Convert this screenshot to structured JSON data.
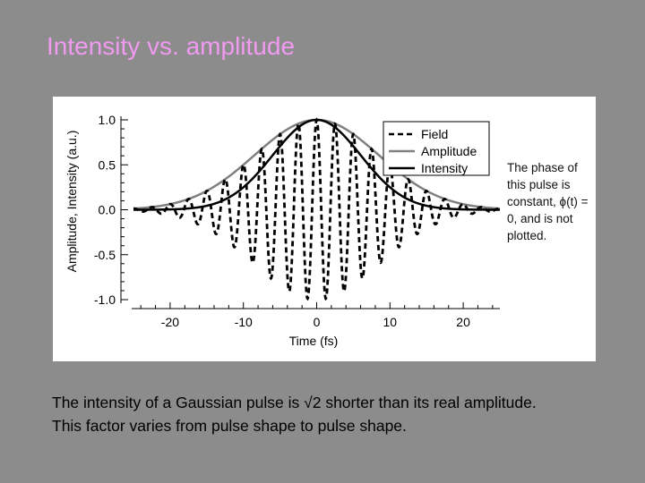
{
  "slide": {
    "title": "Intensity vs. amplitude",
    "side_note": "The phase of this pulse is constant, ϕ(t) = 0, and is not plotted.",
    "caption_line1": "The intensity of a Gaussian pulse is √2 shorter than its real amplitude.",
    "caption_line2": "This factor varies from pulse shape to pulse shape."
  },
  "chart_data": {
    "type": "line",
    "xlabel": "Time (fs)",
    "ylabel": "Amplitude, Intensity (a.u.)",
    "xlim": [
      -25,
      25
    ],
    "ylim": [
      -1.0,
      1.0
    ],
    "xticks": [
      -20,
      -10,
      0,
      10,
      20
    ],
    "yticks": [
      1.0,
      0.5,
      0.0,
      -0.5,
      -1.0
    ],
    "ytick_labels": [
      "1.0",
      "0.5",
      "0.0",
      "-0.5",
      "-1.0"
    ],
    "grid": false,
    "legend_position": "top-right",
    "pulse_fwhm_amplitude_fs": 20,
    "carrier_period_fs": 2.5,
    "series": [
      {
        "name": "Field",
        "style": "dashed",
        "color": "#000000",
        "x": [
          -25,
          -20,
          -17.5,
          -15,
          -12.5,
          -10,
          -7.5,
          -5,
          -2.5,
          0,
          2.5,
          5,
          7.5,
          10,
          12.5,
          15,
          17.5,
          20,
          25
        ],
        "y": [
          0.0,
          0.06,
          0.12,
          0.21,
          0.34,
          0.5,
          0.68,
          0.84,
          0.96,
          1.0,
          0.96,
          0.84,
          0.68,
          0.5,
          0.34,
          0.21,
          0.12,
          0.06,
          0.0
        ]
      },
      {
        "name": "Amplitude",
        "style": "solid",
        "color": "#808080",
        "x": [
          -25,
          -20,
          -15,
          -10,
          -5,
          0,
          5,
          10,
          15,
          20,
          25
        ],
        "y": [
          0.01,
          0.06,
          0.21,
          0.5,
          0.84,
          1.0,
          0.84,
          0.5,
          0.21,
          0.06,
          0.01
        ]
      },
      {
        "name": "Intensity",
        "style": "solid",
        "color": "#000000",
        "x": [
          -25,
          -20,
          -15,
          -10,
          -5,
          0,
          5,
          10,
          15,
          20,
          25
        ],
        "y": [
          0.0,
          0.0,
          0.04,
          0.25,
          0.71,
          1.0,
          0.71,
          0.25,
          0.04,
          0.0,
          0.0
        ]
      }
    ]
  }
}
